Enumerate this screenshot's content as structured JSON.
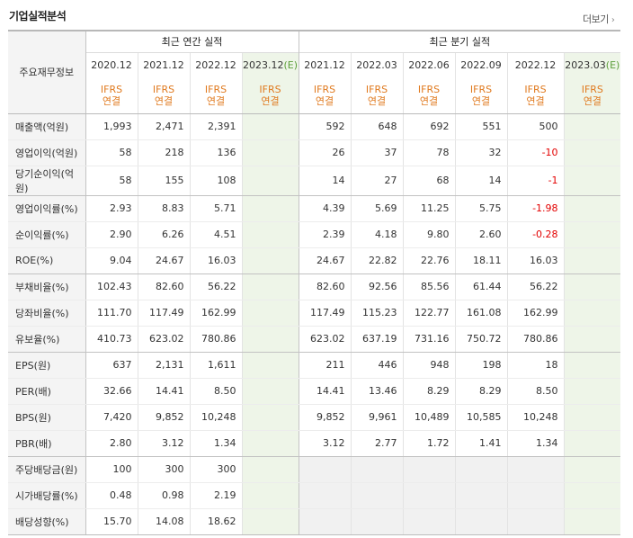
{
  "title": "기업실적분석",
  "more_label": "더보기",
  "header": {
    "row_label": "주요재무정보",
    "annual_label": "최근 연간 실적",
    "quarterly_label": "최근 분기 실적",
    "annual_periods": [
      {
        "period": "2020.12",
        "est": ""
      },
      {
        "period": "2021.12",
        "est": ""
      },
      {
        "period": "2022.12",
        "est": ""
      },
      {
        "period": "2023.12",
        "est": "(E)"
      }
    ],
    "quarterly_periods": [
      {
        "period": "2021.12",
        "est": ""
      },
      {
        "period": "2022.03",
        "est": ""
      },
      {
        "period": "2022.06",
        "est": ""
      },
      {
        "period": "2022.09",
        "est": ""
      },
      {
        "period": "2022.12",
        "est": ""
      },
      {
        "period": "2023.03",
        "est": "(E)"
      }
    ],
    "ifrs_line1": "IFRS",
    "ifrs_line2": "연결"
  },
  "rows": [
    {
      "label": "매출액(억원)",
      "annual": [
        "1,993",
        "2,471",
        "2,391",
        ""
      ],
      "quarterly": [
        "592",
        "648",
        "692",
        "551",
        "500",
        ""
      ]
    },
    {
      "label": "영업이익(억원)",
      "annual": [
        "58",
        "218",
        "136",
        ""
      ],
      "quarterly": [
        "26",
        "37",
        "78",
        "32",
        "-10",
        ""
      ]
    },
    {
      "label": "당기순이익(억원)",
      "annual": [
        "58",
        "155",
        "108",
        ""
      ],
      "quarterly": [
        "14",
        "27",
        "68",
        "14",
        "-1",
        ""
      ]
    },
    {
      "label": "영업이익률(%)",
      "annual": [
        "2.93",
        "8.83",
        "5.71",
        ""
      ],
      "quarterly": [
        "4.39",
        "5.69",
        "11.25",
        "5.75",
        "-1.98",
        ""
      ]
    },
    {
      "label": "순이익률(%)",
      "annual": [
        "2.90",
        "6.26",
        "4.51",
        ""
      ],
      "quarterly": [
        "2.39",
        "4.18",
        "9.80",
        "2.60",
        "-0.28",
        ""
      ]
    },
    {
      "label": "ROE(%)",
      "annual": [
        "9.04",
        "24.67",
        "16.03",
        ""
      ],
      "quarterly": [
        "24.67",
        "22.82",
        "22.76",
        "18.11",
        "16.03",
        ""
      ]
    },
    {
      "label": "부채비율(%)",
      "annual": [
        "102.43",
        "82.60",
        "56.22",
        ""
      ],
      "quarterly": [
        "82.60",
        "92.56",
        "85.56",
        "61.44",
        "56.22",
        ""
      ]
    },
    {
      "label": "당좌비율(%)",
      "annual": [
        "111.70",
        "117.49",
        "162.99",
        ""
      ],
      "quarterly": [
        "117.49",
        "115.23",
        "122.77",
        "161.08",
        "162.99",
        ""
      ]
    },
    {
      "label": "유보율(%)",
      "annual": [
        "410.73",
        "623.02",
        "780.86",
        ""
      ],
      "quarterly": [
        "623.02",
        "637.19",
        "731.16",
        "750.72",
        "780.86",
        ""
      ]
    },
    {
      "label": "EPS(원)",
      "annual": [
        "637",
        "2,131",
        "1,611",
        ""
      ],
      "quarterly": [
        "211",
        "446",
        "948",
        "198",
        "18",
        ""
      ]
    },
    {
      "label": "PER(배)",
      "annual": [
        "32.66",
        "14.41",
        "8.50",
        ""
      ],
      "quarterly": [
        "14.41",
        "13.46",
        "8.29",
        "8.29",
        "8.50",
        ""
      ]
    },
    {
      "label": "BPS(원)",
      "annual": [
        "7,420",
        "9,852",
        "10,248",
        ""
      ],
      "quarterly": [
        "9,852",
        "9,961",
        "10,489",
        "10,585",
        "10,248",
        ""
      ]
    },
    {
      "label": "PBR(배)",
      "annual": [
        "2.80",
        "3.12",
        "1.34",
        ""
      ],
      "quarterly": [
        "3.12",
        "2.77",
        "1.72",
        "1.41",
        "1.34",
        ""
      ]
    },
    {
      "label": "주당배당금(원)",
      "annual": [
        "100",
        "300",
        "300",
        ""
      ],
      "quarterly": [
        "",
        "",
        "",
        "",
        "",
        ""
      ]
    },
    {
      "label": "시가배당률(%)",
      "annual": [
        "0.48",
        "0.98",
        "2.19",
        ""
      ],
      "quarterly": [
        "",
        "",
        "",
        "",
        "",
        ""
      ]
    },
    {
      "label": "배당성향(%)",
      "annual": [
        "15.70",
        "14.08",
        "18.62",
        ""
      ],
      "quarterly": [
        "",
        "",
        "",
        "",
        "",
        ""
      ]
    }
  ],
  "colors": {
    "ifrs": "#e07a1f",
    "negative": "#e30000",
    "estimate_bg": "#eef5e8",
    "label_bg": "#f4f4f4"
  }
}
